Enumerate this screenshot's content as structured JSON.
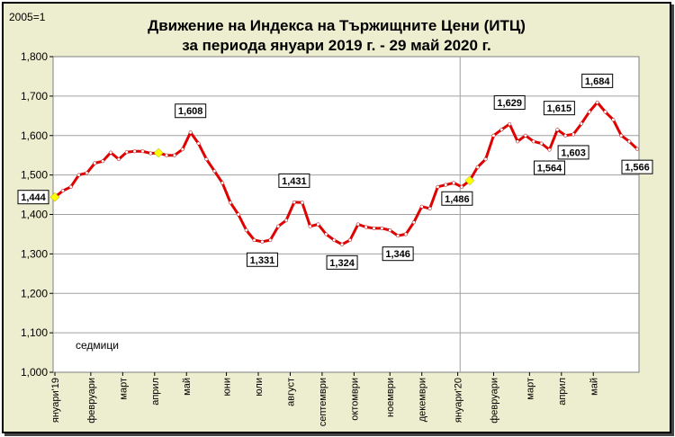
{
  "chart_data": {
    "type": "line",
    "title": "Движение на Индекса на Тържищните Цени (ИТЦ)",
    "subtitle": "за периода януари 2019 г. - 29 май 2020 г.",
    "unit_label": "2005=1",
    "annotation": "седмици",
    "ylim": [
      1.0,
      1.8
    ],
    "yticks": [
      "1,000",
      "1,100",
      "1,200",
      "1,300",
      "1,400",
      "1,500",
      "1,600",
      "1,700",
      "1,800"
    ],
    "grid": true,
    "x_month_labels": [
      {
        "label": "януари'19",
        "week": 0
      },
      {
        "label": "февруари",
        "week": 4.5
      },
      {
        "label": "март",
        "week": 8.5
      },
      {
        "label": "април",
        "week": 12.5
      },
      {
        "label": "май",
        "week": 16.5
      },
      {
        "label": "юни",
        "week": 21.5
      },
      {
        "label": "юли",
        "week": 25.5
      },
      {
        "label": "август",
        "week": 29.5
      },
      {
        "label": "септември",
        "week": 33.5
      },
      {
        "label": "октомври",
        "week": 37.5
      },
      {
        "label": "ноември",
        "week": 42
      },
      {
        "label": "декември",
        "week": 46
      },
      {
        "label": "януари'20",
        "week": 50.5
      },
      {
        "label": "февруари",
        "week": 55
      },
      {
        "label": "март",
        "week": 59.5
      },
      {
        "label": "април",
        "week": 63.5
      },
      {
        "label": "май",
        "week": 67.5
      }
    ],
    "separator_week": 50.8,
    "series": [
      {
        "values": [
          1.444,
          1.46,
          1.47,
          1.5,
          1.505,
          1.53,
          1.535,
          1.557,
          1.54,
          1.558,
          1.56,
          1.56,
          1.555,
          1.556,
          1.55,
          1.55,
          1.565,
          1.608,
          1.58,
          1.54,
          1.51,
          1.48,
          1.43,
          1.4,
          1.36,
          1.335,
          1.331,
          1.335,
          1.37,
          1.385,
          1.431,
          1.43,
          1.37,
          1.375,
          1.35,
          1.335,
          1.324,
          1.335,
          1.375,
          1.368,
          1.365,
          1.365,
          1.36,
          1.346,
          1.35,
          1.38,
          1.42,
          1.415,
          1.47,
          1.475,
          1.48,
          1.47,
          1.486,
          1.52,
          1.54,
          1.6,
          1.615,
          1.629,
          1.585,
          1.6,
          1.585,
          1.58,
          1.564,
          1.615,
          1.6,
          1.603,
          1.63,
          1.66,
          1.684,
          1.66,
          1.64,
          1.6,
          1.585,
          1.566
        ]
      }
    ],
    "highlight_points": [
      {
        "index": 0,
        "color": "#ffff00"
      },
      {
        "index": 13,
        "color": "#ffff00"
      },
      {
        "index": 52,
        "color": "#ffff00"
      }
    ],
    "data_labels": [
      {
        "index": 0,
        "text": "1,444"
      },
      {
        "index": 17,
        "text": "1,608"
      },
      {
        "index": 26,
        "text": "1,331"
      },
      {
        "index": 30,
        "text": "1,431"
      },
      {
        "index": 36,
        "text": "1,324"
      },
      {
        "index": 43,
        "text": "1,346"
      },
      {
        "index": 52,
        "text": "1,486"
      },
      {
        "index": 57,
        "text": "1,629"
      },
      {
        "index": 62,
        "text": "1,564"
      },
      {
        "index": 63,
        "text": "1,615"
      },
      {
        "index": 65,
        "text": "1,603"
      },
      {
        "index": 68,
        "text": "1,684"
      },
      {
        "index": 73,
        "text": "1,566"
      }
    ],
    "colors": {
      "background": "#ededcf",
      "plot_area": "#ffffff",
      "line": "#e00000",
      "marker": "#ffffff",
      "highlight": "#ffff00"
    }
  }
}
